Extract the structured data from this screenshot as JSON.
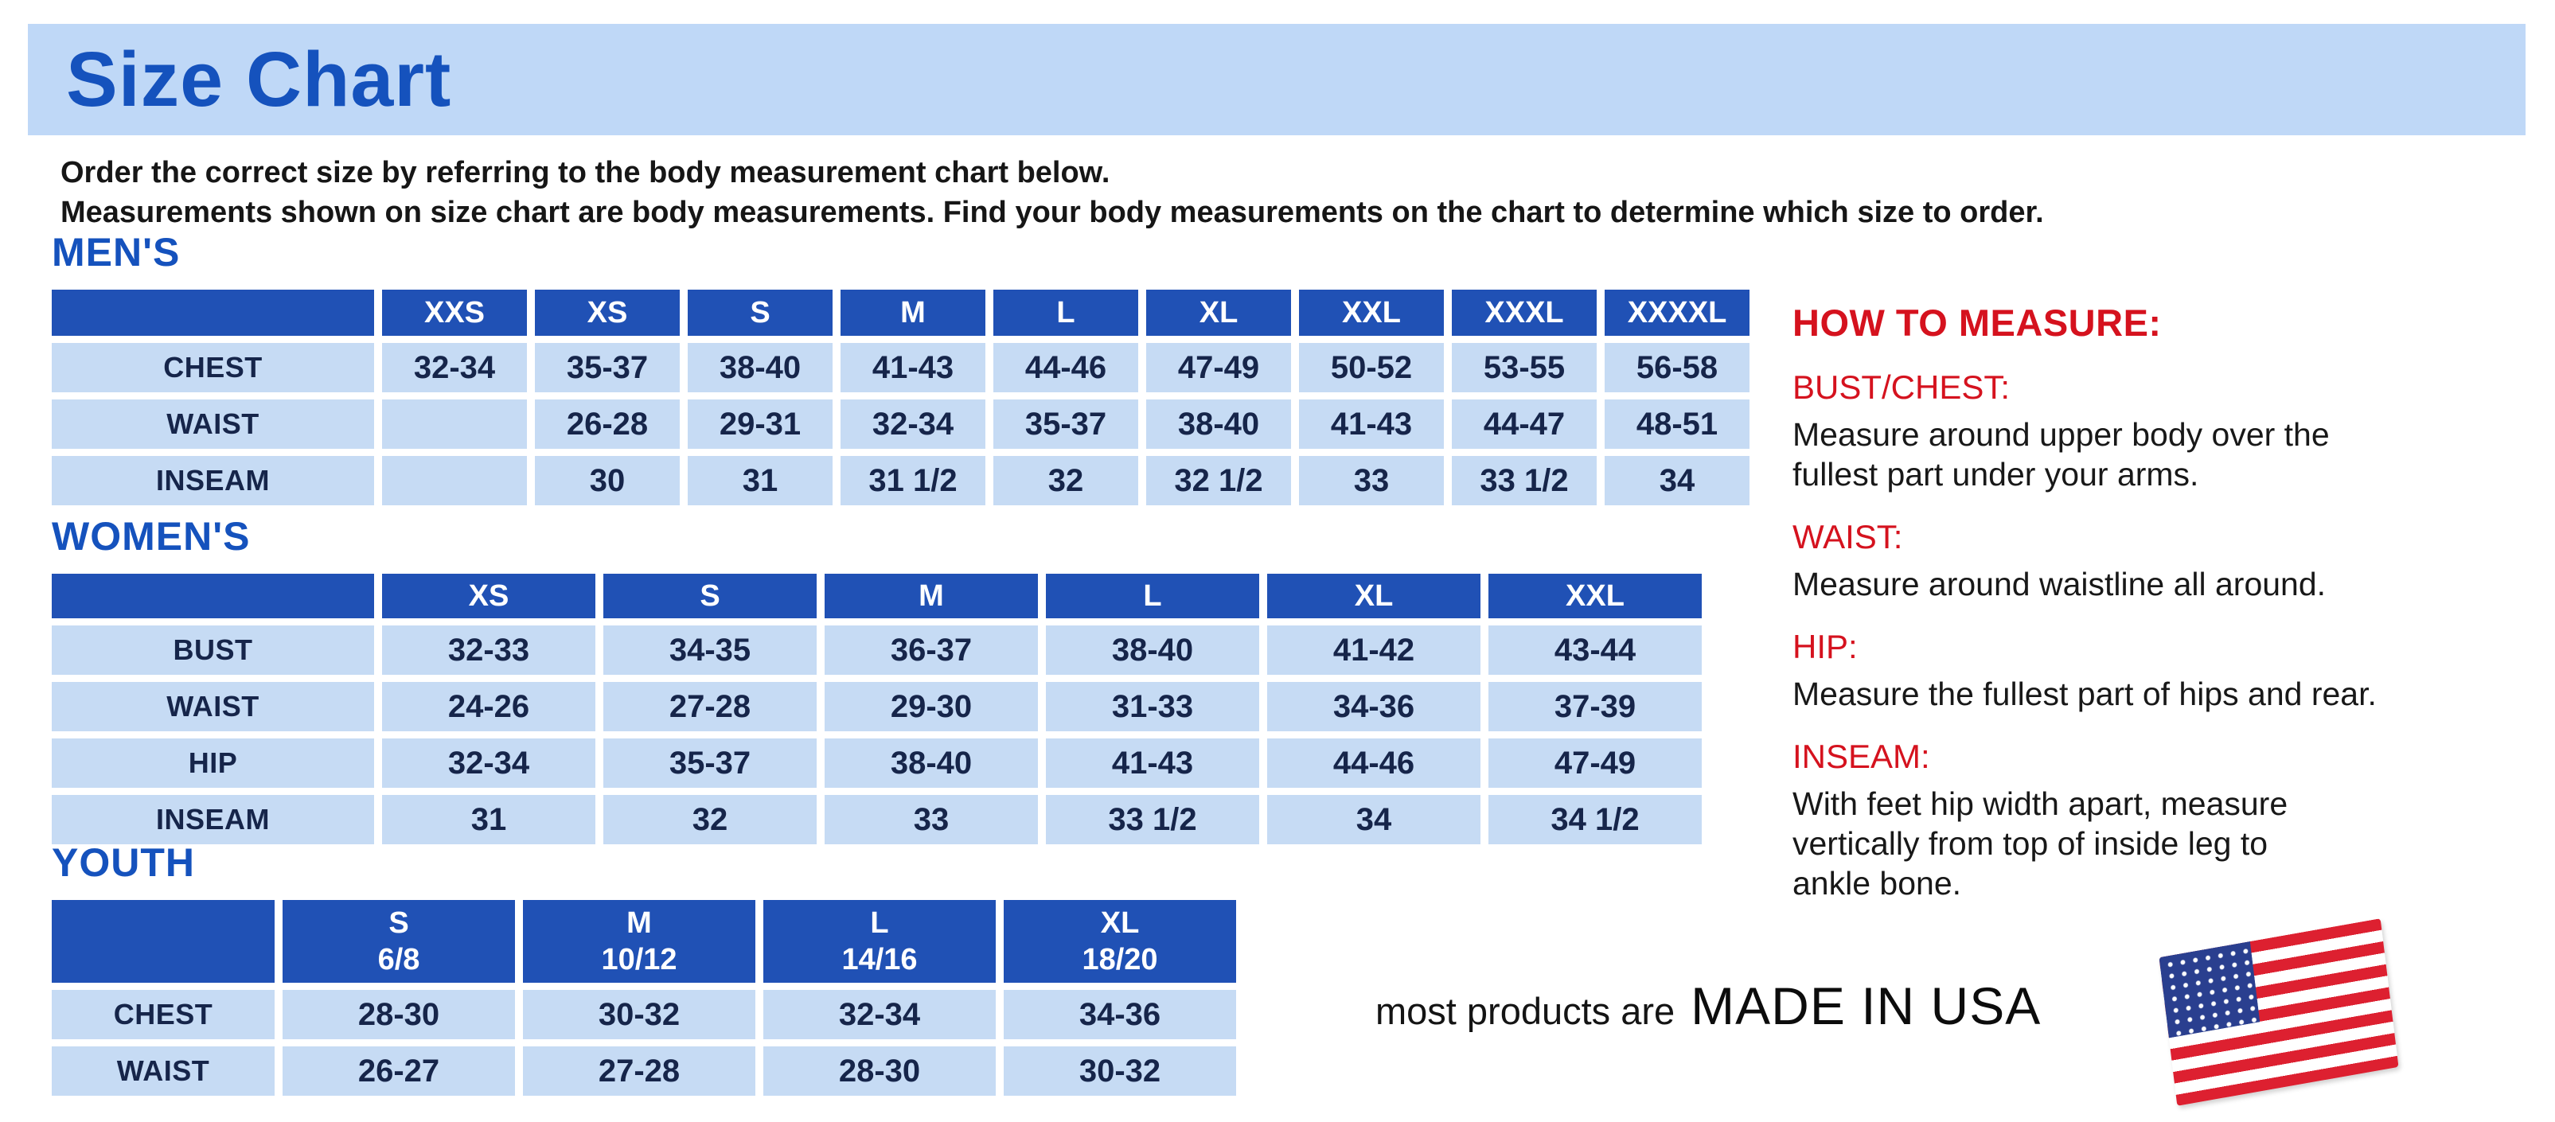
{
  "page": {
    "title": "Size Chart",
    "intro": "Order the correct size by referring to the body measurement chart below.\nMeasurements shown on size chart are body measurements.  Find your body measurements on the chart to determine which size to order."
  },
  "colors": {
    "banner_bg": "#bfd8f7",
    "blue_text": "#1552bd",
    "header_bg": "#2051b5",
    "cell_bg": "#c6dbf4",
    "cell_text": "#16254a",
    "red": "#d5121e",
    "flag_red": "#dd2030",
    "flag_blue": "#2a3f8f"
  },
  "tables": [
    {
      "id": "mens",
      "heading": "MEN'S",
      "columns": [
        "XXS",
        "XS",
        "S",
        "M",
        "L",
        "XL",
        "XXL",
        "XXXL",
        "XXXXL"
      ],
      "rows": [
        {
          "label": "CHEST",
          "values": [
            "32-34",
            "35-37",
            "38-40",
            "41-43",
            "44-46",
            "47-49",
            "50-52",
            "53-55",
            "56-58"
          ]
        },
        {
          "label": "WAIST",
          "values": [
            "",
            "26-28",
            "29-31",
            "32-34",
            "35-37",
            "38-40",
            "41-43",
            "44-47",
            "48-51"
          ]
        },
        {
          "label": "INSEAM",
          "values": [
            "",
            "30",
            "31",
            "31 1/2",
            "32",
            "32 1/2",
            "33",
            "33 1/2",
            "34"
          ]
        }
      ]
    },
    {
      "id": "womens",
      "heading": "WOMEN'S",
      "columns": [
        "XS",
        "S",
        "M",
        "L",
        "XL",
        "XXL"
      ],
      "rows": [
        {
          "label": "BUST",
          "values": [
            "32-33",
            "34-35",
            "36-37",
            "38-40",
            "41-42",
            "43-44"
          ]
        },
        {
          "label": "WAIST",
          "values": [
            "24-26",
            "27-28",
            "29-30",
            "31-33",
            "34-36",
            "37-39"
          ]
        },
        {
          "label": "HIP",
          "values": [
            "32-34",
            "35-37",
            "38-40",
            "41-43",
            "44-46",
            "47-49"
          ]
        },
        {
          "label": "INSEAM",
          "values": [
            "31",
            "32",
            "33",
            "33 1/2",
            "34",
            "34 1/2"
          ]
        }
      ]
    },
    {
      "id": "youth",
      "heading": "YOUTH",
      "columns": [
        "S\n6/8",
        "M\n10/12",
        "L\n14/16",
        "XL\n18/20"
      ],
      "rows": [
        {
          "label": "CHEST",
          "values": [
            "28-30",
            "30-32",
            "32-34",
            "34-36"
          ]
        },
        {
          "label": "WAIST",
          "values": [
            "26-27",
            "27-28",
            "28-30",
            "30-32"
          ]
        }
      ]
    }
  ],
  "how_to_measure": {
    "heading": "HOW TO MEASURE:",
    "items": [
      {
        "term": "BUST/CHEST:",
        "desc": "Measure around upper body over the\nfullest part under your arms."
      },
      {
        "term": "WAIST:",
        "desc": "Measure around waistline all around."
      },
      {
        "term": "HIP:",
        "desc": "Measure the fullest part of hips and rear."
      },
      {
        "term": "INSEAM:",
        "desc": "With feet hip width apart, measure\nvertically from top of inside leg to\nankle bone."
      }
    ]
  },
  "footer": {
    "prefix": "most products are",
    "emphasis": "MADE IN USA",
    "flag_icon": "usa-flag-icon"
  }
}
